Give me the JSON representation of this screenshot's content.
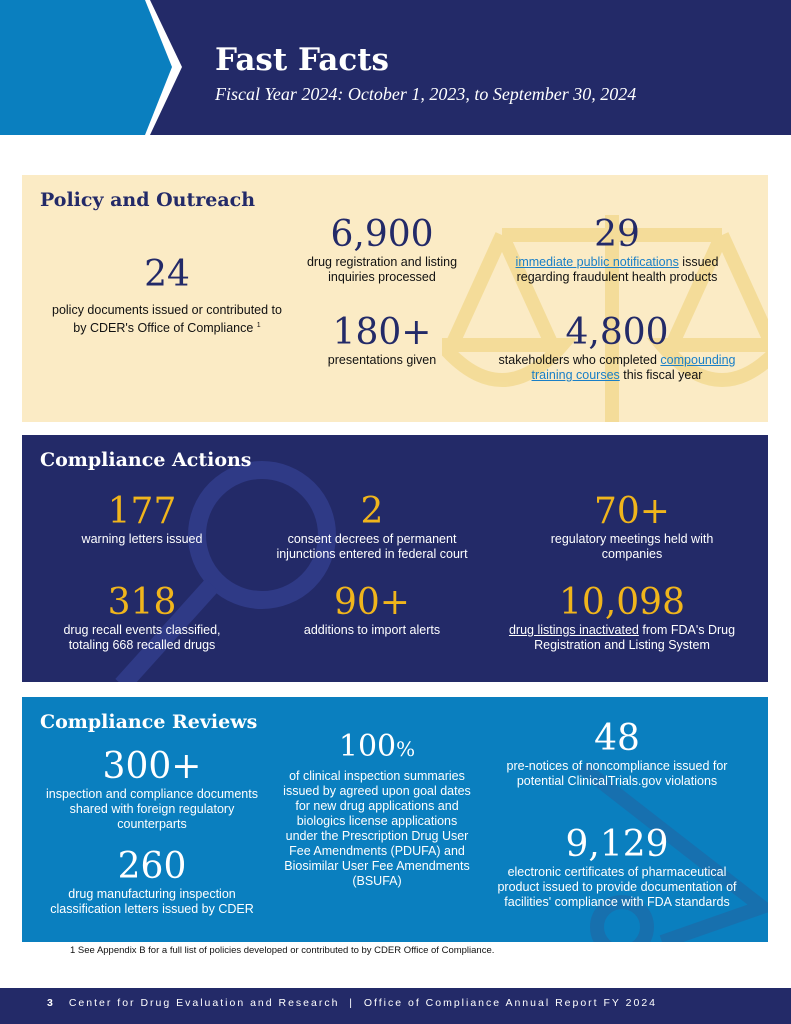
{
  "header": {
    "title": "Fast Facts",
    "subtitle": "Fiscal Year 2024: October 1, 2023, to September 30, 2024"
  },
  "colors": {
    "navy": "#232a68",
    "blue": "#0a7fbf",
    "cream": "#fbebc5",
    "gold": "#f0b51c"
  },
  "policy": {
    "heading": "Policy and Outreach",
    "stats": [
      {
        "num": "24",
        "text": "policy documents issued or contributed to by CDER's Office of Compliance",
        "sup": "1"
      },
      {
        "num": "6,900",
        "text": "drug registration and listing inquiries processed"
      },
      {
        "num": "29",
        "link": "immediate public notifications",
        "text": " issued regarding fraudulent health products"
      },
      {
        "num": "180+",
        "text": "presentations given"
      },
      {
        "num": "4,800",
        "pre": "stakeholders who completed ",
        "link": "compounding training courses",
        "text": " this fiscal year"
      }
    ]
  },
  "actions": {
    "heading": "Compliance Actions",
    "stats": [
      {
        "num": "177",
        "text": "warning letters issued"
      },
      {
        "num": "2",
        "text": "consent decrees of permanent injunctions entered in federal court"
      },
      {
        "num": "70+",
        "text": "regulatory meetings held with companies"
      },
      {
        "num": "318",
        "text": "drug recall events classified, totaling 668 recalled drugs"
      },
      {
        "num": "90+",
        "text": "additions to import alerts"
      },
      {
        "num": "10,098",
        "link": "drug listings inactivated",
        "text": " from FDA's Drug Registration and Listing System"
      }
    ]
  },
  "reviews": {
    "heading": "Compliance Reviews",
    "stats": [
      {
        "num": "300+",
        "text": "inspection and compliance documents shared with foreign regulatory counterparts"
      },
      {
        "num": "260",
        "text": "drug manufacturing inspection classification letters issued by CDER"
      },
      {
        "num": "100",
        "unit": "%",
        "text": "of clinical inspection summaries issued by agreed upon goal dates for new drug applications and biologics license applications under the Prescription Drug User Fee Amendments (PDUFA) and Biosimilar User Fee Amendments (BSUFA)"
      },
      {
        "num": "48",
        "text": "pre-notices of noncompliance issued for potential ClinicalTrials.gov violations"
      },
      {
        "num": "9,129",
        "text": "electronic certificates of pharmaceutical product issued to provide documentation of facilities' compliance with FDA standards"
      }
    ]
  },
  "footnote": "1  See Appendix B for a full list of policies developed or contributed to by CDER Office of Compliance.",
  "footer": {
    "page": "3",
    "text": "Center for Drug Evaluation and Research  |  Office of Compliance Annual Report FY 2024"
  }
}
